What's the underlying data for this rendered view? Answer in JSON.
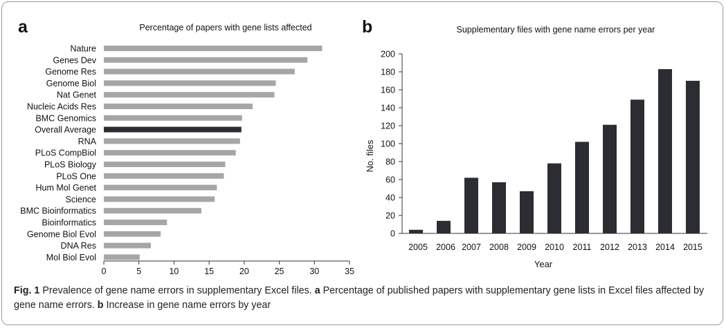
{
  "panel_a": {
    "letter": "a",
    "chart_data": {
      "type": "bar",
      "orientation": "horizontal",
      "title": "Percentage of papers with gene lists affected",
      "categories": [
        "Nature",
        "Genes Dev",
        "Genome Res",
        "Genome Biol",
        "Nat Genet",
        "Nucleic Acids Res",
        "BMC Genomics",
        "Overall Average",
        "RNA",
        "PLoS CompBiol",
        "PLoS Biology",
        "PLoS One",
        "Hum Mol Genet",
        "Science",
        "BMC Bioinformatics",
        "Bioinformatics",
        "Genome Biol Evol",
        "DNA Res",
        "Mol Biol Evol"
      ],
      "values": [
        31.1,
        29.0,
        27.2,
        24.5,
        24.3,
        21.2,
        19.7,
        19.6,
        19.4,
        18.8,
        17.3,
        17.1,
        16.1,
        15.8,
        13.9,
        9.0,
        8.1,
        6.7,
        5.1
      ],
      "highlight_index": 7,
      "bar_color": "#a6a6a6",
      "highlight_color": "#2b2d33",
      "xlim": [
        0,
        35
      ],
      "xticks": [
        0,
        5,
        10,
        15,
        20,
        25,
        30,
        35
      ],
      "xlabel": "",
      "ylabel": "",
      "grid": false
    }
  },
  "panel_b": {
    "letter": "b",
    "chart_data": {
      "type": "bar",
      "title": "Supplementary files with gene name errors per year",
      "categories": [
        "2005",
        "2006",
        "2007",
        "2008",
        "2009",
        "2010",
        "2011",
        "2012",
        "2013",
        "2014",
        "2015"
      ],
      "values": [
        4,
        14,
        62,
        57,
        47,
        78,
        102,
        121,
        149,
        183,
        170
      ],
      "bar_color": "#2b2d33",
      "xlabel": "Year",
      "ylabel": "No. files",
      "ylim": [
        0,
        200
      ],
      "yticks": [
        0,
        20,
        40,
        60,
        80,
        100,
        120,
        140,
        160,
        180,
        200
      ],
      "grid": false
    }
  },
  "caption": {
    "fig_label": "Fig. 1",
    "text_1": " Prevalence of gene name errors in supplementary Excel files. ",
    "label_a": "a",
    "text_2": " Percentage of published papers with supplementary gene lists in Excel files affected by gene name errors. ",
    "label_b": "b",
    "text_3": " Increase in gene name errors by year"
  }
}
